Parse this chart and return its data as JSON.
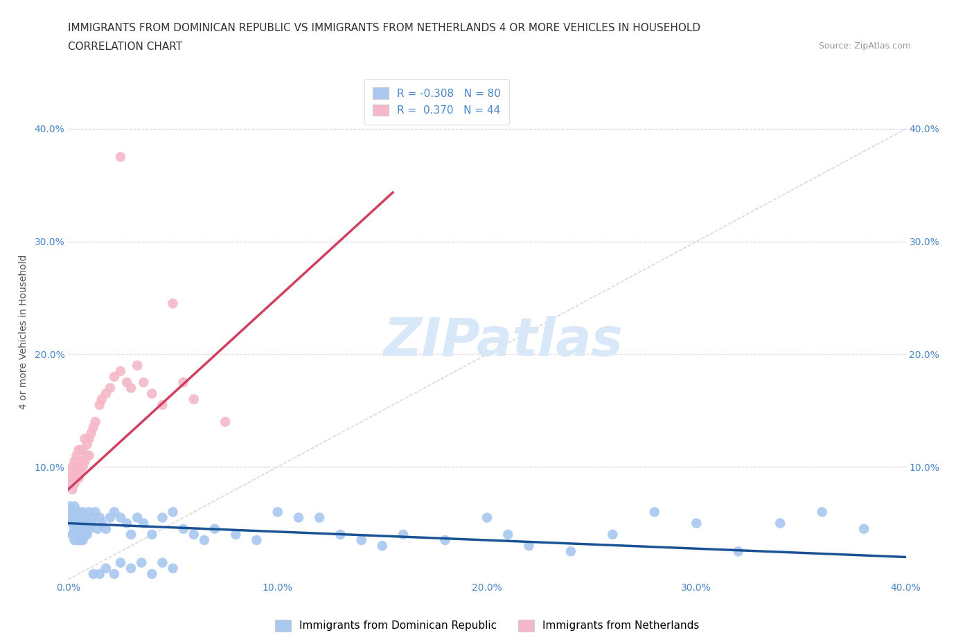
{
  "title_line1": "IMMIGRANTS FROM DOMINICAN REPUBLIC VS IMMIGRANTS FROM NETHERLANDS 4 OR MORE VEHICLES IN HOUSEHOLD",
  "title_line2": "CORRELATION CHART",
  "source_text": "Source: ZipAtlas.com",
  "ylabel": "4 or more Vehicles in Household",
  "legend_label1": "Immigrants from Dominican Republic",
  "legend_label2": "Immigrants from Netherlands",
  "R1": -0.308,
  "N1": 80,
  "R2": 0.37,
  "N2": 44,
  "blue_color": "#a8c8f0",
  "blue_line_color": "#1a5296",
  "pink_color": "#f5b8c8",
  "pink_line_color": "#d04060",
  "diagonal_color": "#c8c8c8",
  "watermark_color": "#d8e8f8",
  "xlim": [
    0.0,
    0.4
  ],
  "ylim": [
    0.0,
    0.44
  ],
  "xtick_vals": [
    0.0,
    0.1,
    0.2,
    0.3,
    0.4
  ],
  "xtick_labels": [
    "0.0%",
    "10.0%",
    "20.0%",
    "30.0%",
    "40.0%"
  ],
  "ytick_vals": [
    0.0,
    0.1,
    0.2,
    0.3,
    0.4
  ],
  "ytick_labels": [
    "",
    "10.0%",
    "20.0%",
    "30.0%",
    "40.0%"
  ],
  "background_color": "#ffffff",
  "blue_x": [
    0.001,
    0.001,
    0.002,
    0.002,
    0.002,
    0.003,
    0.003,
    0.003,
    0.003,
    0.004,
    0.004,
    0.004,
    0.005,
    0.005,
    0.005,
    0.005,
    0.006,
    0.006,
    0.006,
    0.007,
    0.007,
    0.007,
    0.008,
    0.008,
    0.009,
    0.009,
    0.01,
    0.01,
    0.011,
    0.012,
    0.013,
    0.014,
    0.015,
    0.016,
    0.018,
    0.02,
    0.022,
    0.025,
    0.028,
    0.03,
    0.033,
    0.036,
    0.04,
    0.045,
    0.05,
    0.055,
    0.06,
    0.065,
    0.07,
    0.08,
    0.09,
    0.1,
    0.11,
    0.12,
    0.13,
    0.14,
    0.15,
    0.16,
    0.18,
    0.2,
    0.21,
    0.22,
    0.24,
    0.26,
    0.28,
    0.3,
    0.32,
    0.34,
    0.36,
    0.38,
    0.012,
    0.015,
    0.018,
    0.022,
    0.025,
    0.03,
    0.035,
    0.04,
    0.045,
    0.05
  ],
  "blue_y": [
    0.065,
    0.055,
    0.06,
    0.05,
    0.04,
    0.055,
    0.045,
    0.065,
    0.035,
    0.06,
    0.05,
    0.04,
    0.055,
    0.045,
    0.035,
    0.06,
    0.055,
    0.045,
    0.035,
    0.06,
    0.045,
    0.035,
    0.055,
    0.04,
    0.05,
    0.04,
    0.06,
    0.045,
    0.05,
    0.055,
    0.06,
    0.045,
    0.055,
    0.05,
    0.045,
    0.055,
    0.06,
    0.055,
    0.05,
    0.04,
    0.055,
    0.05,
    0.04,
    0.055,
    0.06,
    0.045,
    0.04,
    0.035,
    0.045,
    0.04,
    0.035,
    0.06,
    0.055,
    0.055,
    0.04,
    0.035,
    0.03,
    0.04,
    0.035,
    0.055,
    0.04,
    0.03,
    0.025,
    0.04,
    0.06,
    0.05,
    0.025,
    0.05,
    0.06,
    0.045,
    0.005,
    0.005,
    0.01,
    0.005,
    0.015,
    0.01,
    0.015,
    0.005,
    0.015,
    0.01
  ],
  "pink_x": [
    0.001,
    0.001,
    0.002,
    0.002,
    0.002,
    0.003,
    0.003,
    0.003,
    0.004,
    0.004,
    0.004,
    0.005,
    0.005,
    0.005,
    0.006,
    0.006,
    0.006,
    0.007,
    0.007,
    0.008,
    0.008,
    0.009,
    0.009,
    0.01,
    0.01,
    0.011,
    0.012,
    0.013,
    0.015,
    0.016,
    0.018,
    0.02,
    0.022,
    0.025,
    0.028,
    0.03,
    0.033,
    0.036,
    0.04,
    0.045,
    0.05,
    0.055,
    0.06,
    0.075
  ],
  "pink_y": [
    0.085,
    0.095,
    0.08,
    0.09,
    0.1,
    0.085,
    0.095,
    0.105,
    0.09,
    0.1,
    0.11,
    0.09,
    0.1,
    0.115,
    0.095,
    0.105,
    0.115,
    0.1,
    0.115,
    0.105,
    0.125,
    0.11,
    0.12,
    0.11,
    0.125,
    0.13,
    0.135,
    0.14,
    0.155,
    0.16,
    0.165,
    0.17,
    0.18,
    0.185,
    0.175,
    0.17,
    0.19,
    0.175,
    0.165,
    0.155,
    0.245,
    0.175,
    0.16,
    0.14
  ],
  "pink_outlier_x": [
    0.025
  ],
  "pink_outlier_y": [
    0.375
  ],
  "title_fontsize": 11,
  "axis_label_fontsize": 10,
  "tick_fontsize": 10,
  "legend_fontsize": 11
}
